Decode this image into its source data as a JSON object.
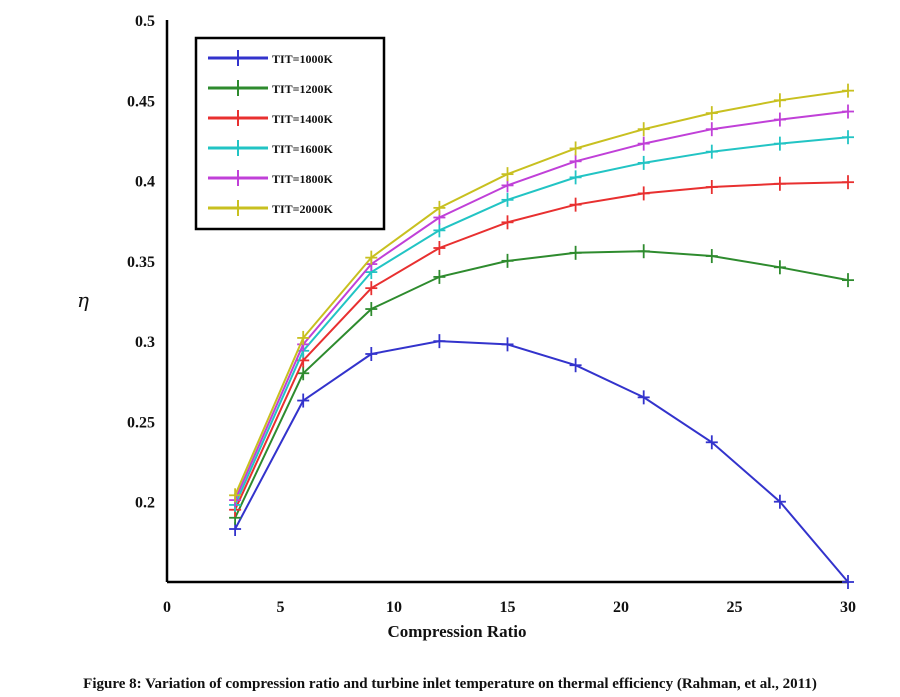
{
  "chart_data": {
    "type": "line",
    "title": "",
    "xlabel": "Compression Ratio",
    "ylabel": "η",
    "xlim": [
      0,
      30
    ],
    "ylim": [
      0.15,
      0.5
    ],
    "x_ticks": [
      0,
      5,
      10,
      15,
      20,
      25,
      30
    ],
    "x_tick_labels": [
      "0",
      "5",
      "10",
      "15",
      "20",
      "25",
      "30"
    ],
    "y_ticks": [
      0.2,
      0.25,
      0.3,
      0.35,
      0.4,
      0.45,
      0.5
    ],
    "y_tick_labels": [
      "0.2",
      "0.25",
      "0.3",
      "0.35",
      "0.4",
      "0.45",
      "0.5"
    ],
    "grid": false,
    "legend_position": "top-left",
    "x": [
      3,
      6,
      9,
      12,
      15,
      18,
      21,
      24,
      27,
      30
    ],
    "series": [
      {
        "name": "TIT=1000K",
        "color": "#3333cc",
        "values": [
          0.183,
          0.263,
          0.292,
          0.3,
          0.298,
          0.285,
          0.265,
          0.237,
          0.2,
          0.15
        ]
      },
      {
        "name": "TIT=1200K",
        "color": "#2e8b2e",
        "values": [
          0.19,
          0.28,
          0.32,
          0.34,
          0.35,
          0.355,
          0.356,
          0.353,
          0.346,
          0.338
        ]
      },
      {
        "name": "TIT=1400K",
        "color": "#e83030",
        "values": [
          0.195,
          0.288,
          0.333,
          0.358,
          0.374,
          0.385,
          0.392,
          0.396,
          0.398,
          0.399
        ]
      },
      {
        "name": "TIT=1600K",
        "color": "#22c4c4",
        "values": [
          0.198,
          0.294,
          0.343,
          0.369,
          0.388,
          0.402,
          0.411,
          0.418,
          0.423,
          0.427
        ]
      },
      {
        "name": "TIT=1800K",
        "color": "#c040d8",
        "values": [
          0.201,
          0.298,
          0.348,
          0.377,
          0.397,
          0.412,
          0.423,
          0.432,
          0.438,
          0.443
        ]
      },
      {
        "name": "TIT=2000K",
        "color": "#c8c020",
        "values": [
          0.204,
          0.302,
          0.352,
          0.383,
          0.404,
          0.42,
          0.432,
          0.442,
          0.45,
          0.456
        ]
      }
    ]
  },
  "caption": "Figure 8: Variation of compression ratio and turbine inlet temperature on thermal efficiency (Rahman, et al., 2011)"
}
